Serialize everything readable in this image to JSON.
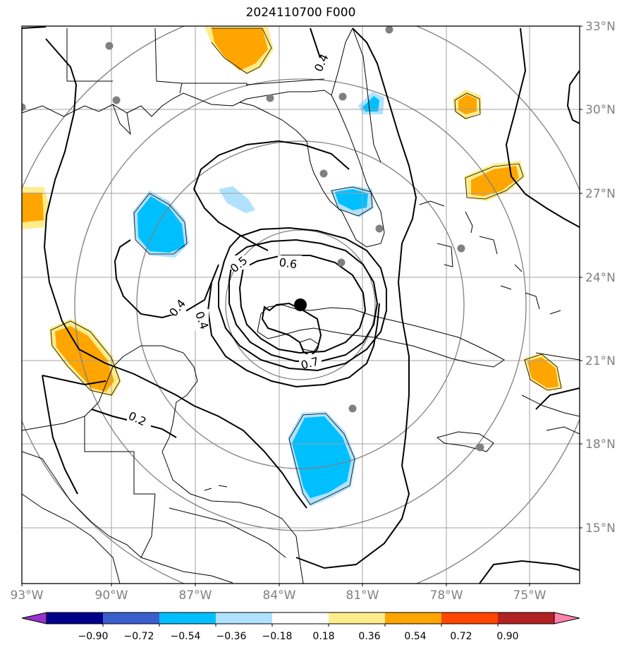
{
  "title": "2024110700 F000",
  "map": {
    "lat_labels": [
      "33°N",
      "30°N",
      "27°N",
      "24°N",
      "21°N",
      "18°N",
      "15°N"
    ],
    "lon_labels": [
      "93°W",
      "90°W",
      "87°W",
      "84°W",
      "81°W",
      "78°W",
      "75°W"
    ],
    "contour_labels": [
      "0.4",
      "0.6",
      "0.5",
      "0.7",
      "0.4",
      "0.4",
      "0.2"
    ],
    "center_marker": "black-dot",
    "station_marker_color": "#808080",
    "grid_color": "#a0a0a0",
    "ring_color": "#808080"
  },
  "colorbar": {
    "ticks": [
      "−0.90",
      "−0.72",
      "−0.54",
      "−0.36",
      "−0.18",
      "0.18",
      "0.36",
      "0.54",
      "0.72",
      "0.90"
    ],
    "colors": [
      "#9932cc",
      "#00008b",
      "#3a5fcd",
      "#00bfff",
      "#b0e2ff",
      "#ffffff",
      "#ffec8b",
      "#ffa500",
      "#ff4500",
      "#b22222",
      "#ff82ab"
    ]
  }
}
